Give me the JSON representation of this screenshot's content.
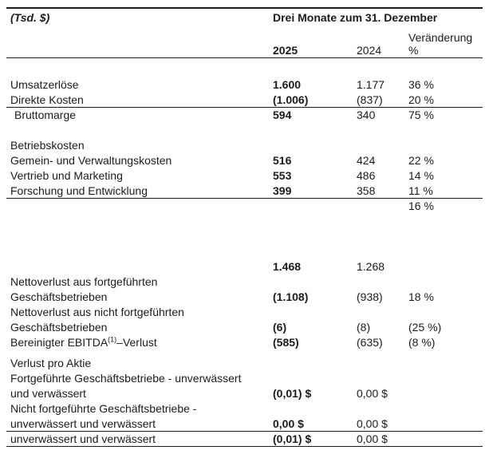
{
  "page": {
    "background": "#ffffff",
    "text_color": "#1b1b1b",
    "rule_color": "#1b1b1b"
  },
  "header": {
    "unit_label": "(Tsd. $)",
    "period_title": "Drei Monate zum 31. Dezember",
    "change_label": "Veränderung",
    "year_current": "2025",
    "year_prior": "2024",
    "percent_symbol": "%"
  },
  "table": {
    "columns": [
      "label",
      "2025",
      "2024",
      "change_percent"
    ],
    "rows": [
      {
        "type": "spacer",
        "h": 24
      },
      {
        "label": "Umsatzerlöse",
        "v2025": "1.600",
        "v2024": "1.177",
        "change": "36 %"
      },
      {
        "label": "Direkte Kosten",
        "v2025": "(1.006)",
        "v2024": "(837)",
        "change": "20 %",
        "rule": true
      },
      {
        "label": "Bruttomarge",
        "v2025": "594",
        "v2024": "340",
        "change": "75 %",
        "indent": true
      },
      {
        "type": "spacer",
        "h": 19
      },
      {
        "label": "Betriebskosten"
      },
      {
        "label": "Gemein- und Verwaltungskosten",
        "v2025": "516",
        "v2024": "424",
        "change": "22 %"
      },
      {
        "label": "Vertrieb und Marketing",
        "v2025": "553",
        "v2024": "486",
        "change": "14 %"
      },
      {
        "label": "Forschung und Entwicklung",
        "v2025": "399",
        "v2024": "358",
        "change": "11 %",
        "rule": true
      },
      {
        "change": "16 %"
      },
      {
        "type": "spacer",
        "h": 57
      },
      {
        "v2025": "1.468",
        "v2024": "1.268"
      },
      {
        "label": "Nettoverlust aus fortgeführten"
      },
      {
        "label": "Geschäftsbetrieben",
        "v2025": "(1.108)",
        "v2024": "(938)",
        "change": "18 %"
      },
      {
        "label": "Nettoverlust aus nicht fortgeführten"
      },
      {
        "label": "Geschäftsbetrieben",
        "v2025": "(6)",
        "v2024": "(8)",
        "change": "(25 %)"
      },
      {
        "label": "Bereinigter EBITDA",
        "label_sup": "(1)",
        "label_post": "–Verlust",
        "v2025": "(585)",
        "v2024": "(635)",
        "change": "(8 %)"
      },
      {
        "type": "spacer",
        "h": 7
      },
      {
        "label": "Verlust pro Aktie"
      },
      {
        "label": "Fortgeführte Geschäftsbetriebe - unverwässert"
      },
      {
        "label": "und verwässert",
        "v2025": "(0,01) $",
        "v2024": "0,00 $"
      },
      {
        "label": "Nicht fortgeführte Geschäftsbetriebe -"
      },
      {
        "label": "unverwässert und verwässert",
        "v2025": "0,00 $",
        "v2024": "0,00 $",
        "rule": true
      },
      {
        "label": "unverwässert und verwässert",
        "v2025": "(0,01) $",
        "v2024": "0,00 $",
        "rule": true
      }
    ]
  }
}
